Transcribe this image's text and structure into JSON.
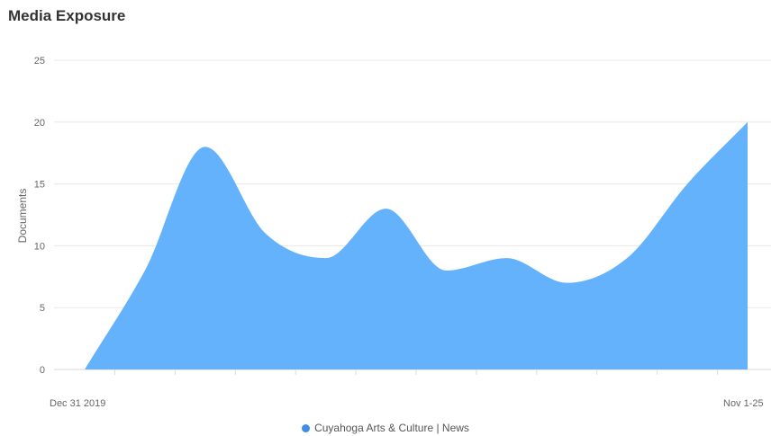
{
  "header": {
    "title": "Media Exposure"
  },
  "colors": {
    "series": "#64b1fc",
    "grid": "#e8e8e8",
    "text": "#666666"
  },
  "chart_data": {
    "type": "area",
    "title": "Media Exposure",
    "ylabel": "Documents",
    "xlabel": "",
    "ylim": [
      0,
      25
    ],
    "yticks": [
      0,
      5,
      10,
      15,
      20,
      25
    ],
    "x_tick_labels": [
      "Dec 31 2019",
      "Nov 1-25"
    ],
    "grid": true,
    "smooth": true,
    "legend_position": "bottom",
    "series": [
      {
        "name": "Cuyahoga Arts & Culture | News",
        "values": [
          0,
          8,
          18,
          11,
          9,
          13,
          8,
          9,
          7,
          9,
          15,
          20
        ]
      }
    ]
  }
}
